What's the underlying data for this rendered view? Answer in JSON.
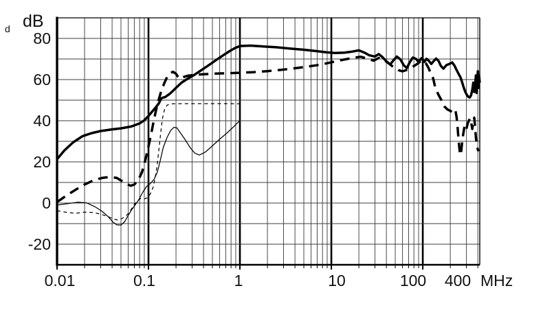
{
  "figure": {
    "corner_label": "d"
  },
  "chart_data": {
    "type": "line",
    "title": "",
    "ylabel": "dB",
    "xlabel": "",
    "x_unit": "MHz",
    "x_scale": "log",
    "x_range": [
      0.01,
      420
    ],
    "y_range": [
      -30,
      90
    ],
    "y_gridline_step": 10,
    "y_tick_labels": [
      "80",
      "60",
      "40",
      "20",
      "0",
      "-20"
    ],
    "y_tick_values": [
      80,
      60,
      40,
      20,
      0,
      -20
    ],
    "x_tick_labels": [
      "0.01",
      "0.1",
      "1",
      "10",
      "100",
      "400"
    ],
    "x_tick_values": [
      0.01,
      0.1,
      1,
      10,
      100,
      400
    ],
    "grid": "on",
    "legend": "none",
    "series": [
      {
        "name": "thin-solid",
        "line": "solid",
        "weight": "thin",
        "points": [
          [
            0.01,
            -1
          ],
          [
            0.013,
            -0.3
          ],
          [
            0.017,
            0.4
          ],
          [
            0.021,
            0.1
          ],
          [
            0.026,
            -1.8
          ],
          [
            0.031,
            -4
          ],
          [
            0.036,
            -6.5
          ],
          [
            0.041,
            -9.3
          ],
          [
            0.045,
            -10.6
          ],
          [
            0.05,
            -10.7
          ],
          [
            0.055,
            -9
          ],
          [
            0.06,
            -6
          ],
          [
            0.065,
            -3.5
          ],
          [
            0.07,
            -1.5
          ],
          [
            0.078,
            1.5
          ],
          [
            0.086,
            5
          ],
          [
            0.095,
            8
          ],
          [
            0.105,
            9.5
          ],
          [
            0.115,
            11.5
          ],
          [
            0.125,
            15
          ],
          [
            0.135,
            21
          ],
          [
            0.145,
            27
          ],
          [
            0.16,
            32
          ],
          [
            0.175,
            35.3
          ],
          [
            0.19,
            36.8
          ],
          [
            0.205,
            36.5
          ],
          [
            0.22,
            34.5
          ],
          [
            0.25,
            31
          ],
          [
            0.285,
            27
          ],
          [
            0.32,
            24.3
          ],
          [
            0.36,
            23.3
          ],
          [
            0.42,
            24.8
          ],
          [
            0.5,
            27.8
          ],
          [
            0.6,
            31
          ],
          [
            0.72,
            34
          ],
          [
            0.85,
            37
          ],
          [
            1.0,
            40.1
          ]
        ]
      },
      {
        "name": "thin-dashed",
        "line": "dashed",
        "weight": "thin",
        "points": [
          [
            0.01,
            -3.7
          ],
          [
            0.013,
            -4.6
          ],
          [
            0.016,
            -5
          ],
          [
            0.02,
            -4.4
          ],
          [
            0.025,
            -4.6
          ],
          [
            0.03,
            -5.4
          ],
          [
            0.036,
            -6.6
          ],
          [
            0.041,
            -7.6
          ],
          [
            0.045,
            -8.2
          ],
          [
            0.05,
            -7.8
          ],
          [
            0.056,
            -6.5
          ],
          [
            0.062,
            -4.5
          ],
          [
            0.068,
            -1.5
          ],
          [
            0.075,
            1
          ],
          [
            0.082,
            2.2
          ],
          [
            0.09,
            2
          ],
          [
            0.098,
            2.6
          ],
          [
            0.105,
            4.5
          ],
          [
            0.112,
            7.5
          ],
          [
            0.118,
            12
          ],
          [
            0.124,
            18
          ],
          [
            0.13,
            26
          ],
          [
            0.136,
            34
          ],
          [
            0.142,
            41
          ],
          [
            0.15,
            45.5
          ],
          [
            0.16,
            47.6
          ],
          [
            0.175,
            48.2
          ],
          [
            0.25,
            48.3
          ],
          [
            0.5,
            48.3
          ],
          [
            0.8,
            48.3
          ],
          [
            0.98,
            48.2
          ]
        ]
      },
      {
        "name": "thick-dashed",
        "line": "dashed",
        "weight": "thick",
        "points": [
          [
            0.01,
            0.5
          ],
          [
            0.013,
            4
          ],
          [
            0.016,
            6.5
          ],
          [
            0.02,
            9
          ],
          [
            0.025,
            11
          ],
          [
            0.031,
            12.2
          ],
          [
            0.038,
            12.7
          ],
          [
            0.045,
            12.2
          ],
          [
            0.052,
            10.5
          ],
          [
            0.058,
            9.2
          ],
          [
            0.064,
            8.4
          ],
          [
            0.07,
            9
          ],
          [
            0.077,
            11
          ],
          [
            0.085,
            15
          ],
          [
            0.092,
            20.5
          ],
          [
            0.1,
            27.5
          ],
          [
            0.107,
            33.5
          ],
          [
            0.113,
            39
          ],
          [
            0.12,
            44.5
          ],
          [
            0.128,
            49.5
          ],
          [
            0.137,
            54
          ],
          [
            0.148,
            58
          ],
          [
            0.16,
            61.3
          ],
          [
            0.172,
            63
          ],
          [
            0.185,
            63.8
          ],
          [
            0.2,
            62.8
          ],
          [
            0.21,
            61.4
          ],
          [
            0.222,
            60.4
          ],
          [
            0.24,
            61.2
          ],
          [
            0.27,
            61.9
          ],
          [
            0.32,
            62.3
          ],
          [
            0.4,
            62.6
          ],
          [
            0.55,
            62.9
          ],
          [
            0.75,
            63.1
          ],
          [
            1,
            63.3
          ],
          [
            1.4,
            63.6
          ],
          [
            2,
            64.1
          ],
          [
            2.8,
            64.7
          ],
          [
            4,
            65.5
          ],
          [
            5.5,
            66.3
          ],
          [
            7.5,
            67.2
          ],
          [
            10,
            68.4
          ],
          [
            13,
            69.5
          ],
          [
            17,
            70.5
          ],
          [
            21,
            71.1
          ],
          [
            25,
            70.1
          ],
          [
            29,
            69.2
          ],
          [
            33,
            70.5
          ],
          [
            37,
            69.7
          ],
          [
            42,
            68
          ],
          [
            48,
            66
          ],
          [
            54,
            64.6
          ],
          [
            60,
            64
          ],
          [
            68,
            64.8
          ],
          [
            77,
            66.1
          ],
          [
            87,
            67.6
          ],
          [
            95,
            68.9
          ],
          [
            101,
            69.3
          ],
          [
            108,
            68
          ],
          [
            115,
            65.8
          ],
          [
            122,
            63.2
          ],
          [
            130,
            60.5
          ],
          [
            137,
            56
          ],
          [
            149,
            52.5
          ],
          [
            160,
            50
          ],
          [
            172,
            47
          ],
          [
            186,
            45.5
          ],
          [
            200,
            44.8
          ],
          [
            210,
            44.2
          ],
          [
            218,
            43.5
          ],
          [
            228,
            44.8
          ],
          [
            234,
            42
          ],
          [
            240,
            37
          ],
          [
            246,
            31
          ],
          [
            252,
            26
          ],
          [
            258,
            23.3
          ],
          [
            263,
            25
          ],
          [
            269,
            29.5
          ],
          [
            276,
            33
          ],
          [
            284,
            36.5
          ],
          [
            293,
            38.2
          ],
          [
            302,
            36.5
          ],
          [
            311,
            38.8
          ],
          [
            321,
            40.3
          ],
          [
            330,
            41.2
          ],
          [
            339,
            39
          ],
          [
            348,
            36
          ],
          [
            357,
            39.5
          ],
          [
            366,
            41.5
          ],
          [
            373,
            37.5
          ],
          [
            379,
            33
          ],
          [
            386,
            29.5
          ],
          [
            394,
            27
          ],
          [
            402,
            25.7
          ],
          [
            410,
            25.2
          ]
        ]
      },
      {
        "name": "thick-solid",
        "line": "solid",
        "weight": "thick",
        "points": [
          [
            0.01,
            21.3
          ],
          [
            0.012,
            25.5
          ],
          [
            0.015,
            29.5
          ],
          [
            0.019,
            32.5
          ],
          [
            0.024,
            34
          ],
          [
            0.03,
            35
          ],
          [
            0.04,
            35.8
          ],
          [
            0.05,
            36.3
          ],
          [
            0.065,
            37.2
          ],
          [
            0.08,
            38.7
          ],
          [
            0.09,
            40.2
          ],
          [
            0.1,
            42.3
          ],
          [
            0.11,
            44.5
          ],
          [
            0.12,
            46.5
          ],
          [
            0.13,
            48.5
          ],
          [
            0.138,
            50.8
          ],
          [
            0.143,
            51.2
          ],
          [
            0.152,
            51.5
          ],
          [
            0.16,
            52.2
          ],
          [
            0.172,
            53.2
          ],
          [
            0.185,
            54.5
          ],
          [
            0.2,
            56
          ],
          [
            0.23,
            58.5
          ],
          [
            0.27,
            60.5
          ],
          [
            0.32,
            62.4
          ],
          [
            0.38,
            64.6
          ],
          [
            0.45,
            66.8
          ],
          [
            0.55,
            69.5
          ],
          [
            0.65,
            71.7
          ],
          [
            0.77,
            73.8
          ],
          [
            0.88,
            75.3
          ],
          [
            1,
            76.3
          ],
          [
            1.3,
            76.5
          ],
          [
            1.8,
            76.1
          ],
          [
            2.5,
            75.7
          ],
          [
            3.5,
            75.1
          ],
          [
            5,
            74.5
          ],
          [
            7,
            73.8
          ],
          [
            9,
            73.2
          ],
          [
            11,
            72.9
          ],
          [
            14,
            73.1
          ],
          [
            17,
            73.6
          ],
          [
            20,
            74.2
          ],
          [
            23,
            73.1
          ],
          [
            26,
            71.8
          ],
          [
            30,
            71.2
          ],
          [
            33,
            72.4
          ],
          [
            36,
            71
          ],
          [
            40,
            68.9
          ],
          [
            44,
            67.3
          ],
          [
            48,
            69.5
          ],
          [
            52,
            71.2
          ],
          [
            57,
            69.8
          ],
          [
            62,
            66.9
          ],
          [
            67,
            65.6
          ],
          [
            72,
            68.4
          ],
          [
            78,
            70.7
          ],
          [
            84,
            70.1
          ],
          [
            90,
            68.6
          ],
          [
            97,
            70.4
          ],
          [
            104,
            68.6
          ],
          [
            110,
            70.1
          ],
          [
            117,
            69
          ],
          [
            124,
            67.6
          ],
          [
            131,
            68.9
          ],
          [
            140,
            70.2
          ],
          [
            149,
            69
          ],
          [
            158,
            66.6
          ],
          [
            168,
            65.3
          ],
          [
            181,
            67
          ],
          [
            195,
            67.6
          ],
          [
            210,
            68.3
          ],
          [
            222,
            66.8
          ],
          [
            235,
            64.5
          ],
          [
            248,
            62.5
          ],
          [
            259,
            61
          ],
          [
            270,
            58.5
          ],
          [
            281,
            56
          ],
          [
            292,
            54
          ],
          [
            303,
            52.6
          ],
          [
            315,
            51.6
          ],
          [
            326,
            51.3
          ],
          [
            337,
            52.3
          ],
          [
            348,
            55
          ],
          [
            357,
            58.5
          ],
          [
            365,
            54
          ],
          [
            373,
            57
          ],
          [
            381,
            62
          ],
          [
            387,
            53.5
          ],
          [
            394,
            58
          ],
          [
            400,
            64
          ],
          [
            407,
            56
          ],
          [
            413,
            62
          ],
          [
            420,
            58.5
          ]
        ]
      }
    ]
  }
}
